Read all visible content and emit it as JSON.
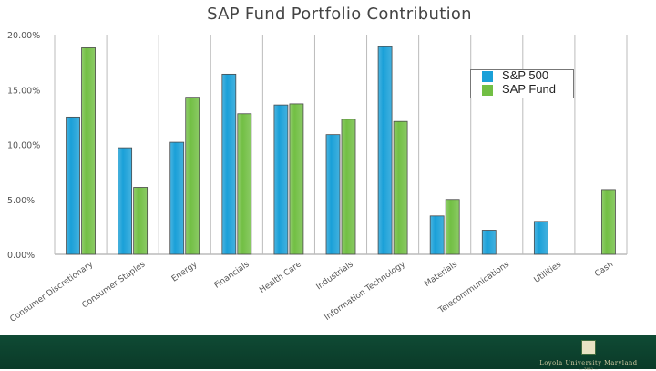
{
  "chart_data": {
    "type": "bar",
    "title": "SAP Fund Portfolio Contribution",
    "categories": [
      "Consumer Discretionary",
      "Consumer Staples",
      "Energy",
      "Financials",
      "Health Care",
      "Industrials",
      "Information Technology",
      "Materials",
      "Telecommunications",
      "Utilities",
      "Cash"
    ],
    "series": [
      {
        "name": "S&P 500",
        "color": "#1aa0d8",
        "values": [
          12.5,
          9.7,
          10.2,
          16.4,
          13.6,
          10.9,
          18.9,
          3.5,
          2.2,
          3.0,
          0
        ]
      },
      {
        "name": "SAP Fund",
        "color": "#72bf44",
        "values": [
          18.8,
          6.1,
          14.3,
          12.8,
          13.7,
          12.3,
          12.1,
          5.0,
          0,
          0,
          5.9
        ]
      }
    ],
    "ylim": [
      0,
      20
    ],
    "yticks": [
      0,
      5,
      10,
      15,
      20
    ],
    "ytick_labels": [
      "0.00%",
      "5.00%",
      "10.00%",
      "15.00%",
      "20.00%"
    ],
    "xlabel": "",
    "ylabel": "",
    "grid": "vertical-separators",
    "legend_position": "top-right"
  },
  "footer": {
    "university": "Loyola University Maryland",
    "tagline": "— 1852 —"
  },
  "colors": {
    "footer_green": "#0f4a34"
  }
}
